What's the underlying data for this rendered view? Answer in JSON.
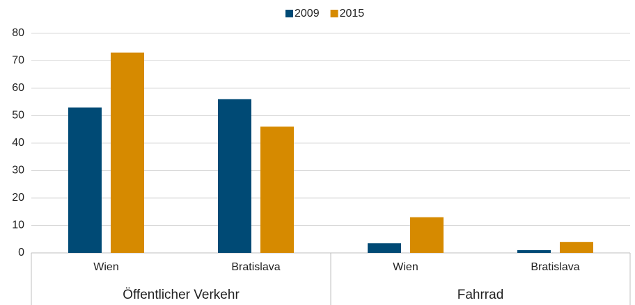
{
  "chart_data": {
    "type": "bar",
    "groups": [
      {
        "name": "Öffentlicher Verkehr",
        "categories": [
          "Wien",
          "Bratislava"
        ]
      },
      {
        "name": "Fahrrad",
        "categories": [
          "Wien",
          "Bratislava"
        ]
      }
    ],
    "series": [
      {
        "name": "2009",
        "color": "#004a75",
        "values": [
          53,
          56,
          3.5,
          1
        ]
      },
      {
        "name": "2015",
        "color": "#d68a00",
        "values": [
          73,
          46,
          13,
          4
        ]
      }
    ],
    "ylim": [
      0,
      80
    ],
    "yticks": [
      0,
      10,
      20,
      30,
      40,
      50,
      60,
      70,
      80
    ],
    "grid": true,
    "legend": "top"
  }
}
